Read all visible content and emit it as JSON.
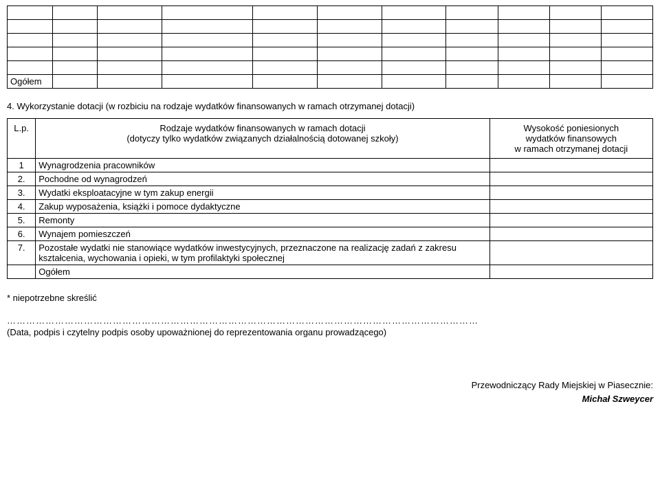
{
  "table1": {
    "columns": 11,
    "blank_rows": 5,
    "total_row_label": "Ogółem",
    "col_widths_pct": [
      7,
      7,
      10,
      14,
      10,
      10,
      10,
      8,
      8,
      8,
      8
    ]
  },
  "section_title": "4. Wykorzystanie dotacji (w rozbiciu na rodzaje wydatków finansowanych w ramach otrzymanej dotacji)",
  "table2": {
    "header": {
      "lp": "L.p.",
      "desc_line1": "Rodzaje wydatków finansowanych w ramach dotacji",
      "desc_line2": "(dotyczy tylko wydatków związanych działalnością dotowanej szkoły)",
      "val_line1": "Wysokość poniesionych",
      "val_line2": "wydatków finansowych",
      "val_line3": "w ramach otrzymanej dotacji"
    },
    "rows": [
      {
        "num": "1",
        "desc": "Wynagrodzenia pracowników"
      },
      {
        "num": "2.",
        "desc": "Pochodne od wynagrodzeń"
      },
      {
        "num": "3.",
        "desc": "Wydatki eksploatacyjne w tym zakup energii"
      },
      {
        "num": "4.",
        "desc": "Zakup wyposażenia, książki i pomoce dydaktyczne"
      },
      {
        "num": "5.",
        "desc": "Remonty"
      },
      {
        "num": "6.",
        "desc": "Wynajem pomieszczeń"
      },
      {
        "num": "7.",
        "desc": "Pozostałe wydatki nie stanowiące wydatków inwestycyjnych, przeznaczone na realizację zadań z zakresu kształcenia, wychowania i opieki, w tym profilaktyki społecznej"
      }
    ],
    "total_label": "Ogółem"
  },
  "footnote": "* niepotrzebne skreślić",
  "dots": "…………………………………………………………………………………………………………………………………",
  "caption": "(Data, podpis i czytelny podpis osoby upoważnionej do reprezentowania organu prowadzącego)",
  "signature": {
    "title": "Przewodniczący Rady Miejskiej w Piasecznie:",
    "name": "Michał Szweycer"
  }
}
